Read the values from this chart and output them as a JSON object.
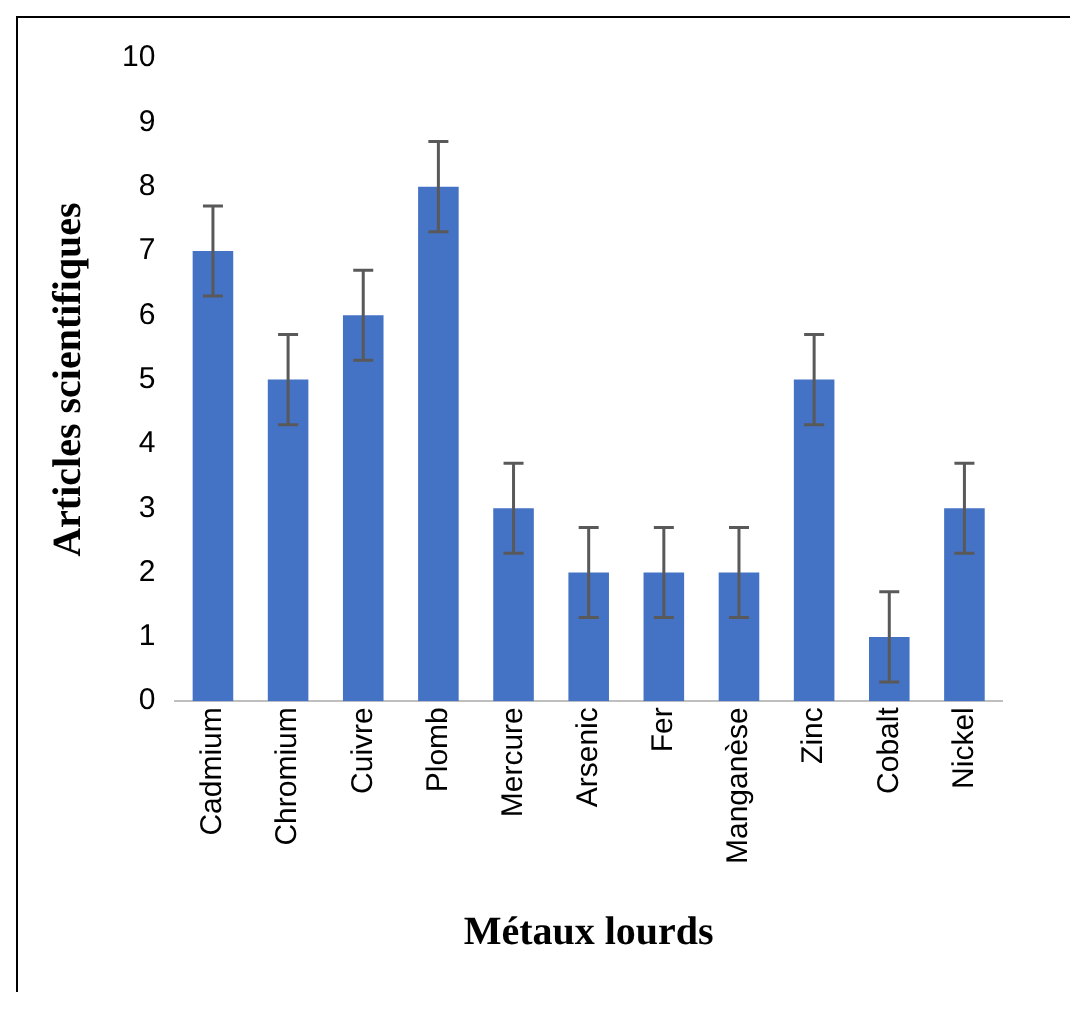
{
  "chart_data": {
    "type": "bar",
    "xlabel": "Métaux lourds",
    "ylabel": "Articles scientifiques",
    "categories": [
      "Cadmium",
      "Chromium",
      "Cuivre",
      "Plomb",
      "Mercure",
      "Arsenic",
      "Fer",
      "Manganèse",
      "Zinc",
      "Cobalt",
      "Nickel"
    ],
    "values": [
      7,
      5,
      6,
      8,
      3,
      2,
      2,
      2,
      5,
      1,
      3
    ],
    "errors": [
      0.7,
      0.7,
      0.7,
      0.7,
      0.7,
      0.7,
      0.7,
      0.7,
      0.7,
      0.7,
      0.7
    ],
    "color": "#4472c4",
    "ylim": [
      0,
      10
    ],
    "yticks": [
      0,
      1,
      2,
      3,
      4,
      5,
      6,
      7,
      8,
      9,
      10
    ],
    "grid": false,
    "legend": false
  }
}
